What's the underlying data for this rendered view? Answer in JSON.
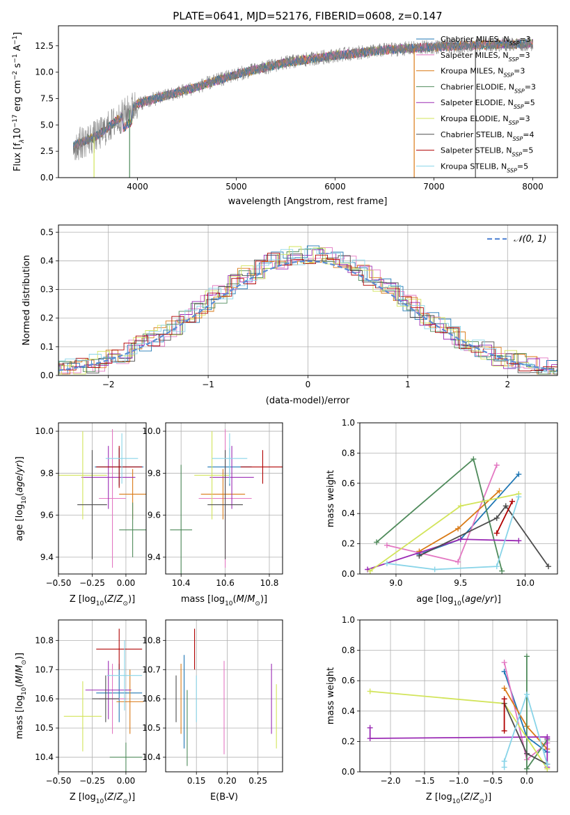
{
  "chart_data": [
    {
      "id": "spectrum",
      "type": "line",
      "title": "PLATE=0641, MJD=52176, FIBERID=0608, z=0.147",
      "xlabel": "wavelength [Angstrom, rest frame]",
      "ylabel": "Flux [f_λ 10^-17 erg cm^-2 s^-1 A^-1]",
      "xlim": [
        3200,
        8250
      ],
      "ylim": [
        0,
        14.4
      ],
      "xticks": [
        4000,
        5000,
        6000,
        7000,
        8000
      ],
      "yticks": [
        0.0,
        2.5,
        5.0,
        7.5,
        10.0,
        12.5
      ],
      "xtick_labels": [
        "4000",
        "5000",
        "6000",
        "7000",
        "8000"
      ],
      "ytick_labels": [
        "0.0",
        "2.5",
        "5.0",
        "7.5",
        "10.0",
        "12.5"
      ],
      "data_range": [
        3350,
        8000
      ],
      "continuum": {
        "x": [
          3350,
          3600,
          3800,
          4000,
          4300,
          4600,
          5000,
          5500,
          6000,
          6500,
          7000,
          7500,
          8000
        ],
        "y": [
          3.0,
          4.0,
          5.5,
          7.0,
          7.8,
          8.6,
          9.8,
          10.9,
          11.6,
          12.1,
          12.4,
          12.6,
          12.7
        ]
      },
      "grid": false,
      "legend_position": "top-right",
      "legend": [
        {
          "label": "Chabrier MILES, N",
          "sub": "SSP",
          "suffix": "=3",
          "color": "#1f77b4"
        },
        {
          "label": "Salpeter MILES, N",
          "sub": "SSP",
          "suffix": "=3",
          "color": "#e377c2"
        },
        {
          "label": "Kroupa MILES, N",
          "sub": "SSP",
          "suffix": "=3",
          "color": "#d97a16"
        },
        {
          "label": "Chabrier ELODIE, N",
          "sub": "SSP",
          "suffix": "=3",
          "color": "#4e8a5a"
        },
        {
          "label": "Salpeter ELODIE, N",
          "sub": "SSP",
          "suffix": "=5",
          "color": "#9a2ab4"
        },
        {
          "label": "Kroupa ELODIE, N",
          "sub": "SSP",
          "suffix": "=3",
          "color": "#d2e45a"
        },
        {
          "label": "Chabrier STELIB, N",
          "sub": "SSP",
          "suffix": "=4",
          "color": "#4d4d4d"
        },
        {
          "label": "Salpeter STELIB, N",
          "sub": "SSP",
          "suffix": "=5",
          "color": "#b00000"
        },
        {
          "label": "Kroupa STELIB, N",
          "sub": "SSP",
          "suffix": "=5",
          "color": "#88d4e8"
        }
      ]
    },
    {
      "id": "residuals",
      "type": "step",
      "xlabel": "(data-model)/error",
      "ylabel": "Normed distribution",
      "xlim": [
        -2.5,
        2.5
      ],
      "ylim": [
        0,
        0.525
      ],
      "xticks": [
        -2,
        -1,
        0,
        1,
        2
      ],
      "yticks": [
        0.0,
        0.1,
        0.2,
        0.3,
        0.4,
        0.5
      ],
      "xtick_labels": [
        "−2",
        "−1",
        "0",
        "1",
        "2"
      ],
      "ytick_labels": [
        "0.0",
        "0.1",
        "0.2",
        "0.3",
        "0.4",
        "0.5"
      ],
      "grid": true,
      "legend_position": "top-right",
      "legend": [
        {
          "label": "𝒩(0, 1)",
          "color": "#5b8bd6"
        }
      ],
      "gaussian": {
        "mu": 0,
        "sigma": 1
      }
    },
    {
      "id": "age_vs_Z",
      "type": "errorbar",
      "xlabel": "Z [log10(Z/Z⊙)]",
      "ylabel": "age  [log10(age/yr)]",
      "xlim": [
        -0.5,
        0.15
      ],
      "ylim": [
        9.32,
        10.04
      ],
      "xticks": [
        -0.5,
        -0.25,
        0.0
      ],
      "yticks": [
        9.4,
        9.6,
        9.8,
        10.0
      ],
      "xtick_labels": [
        "−0.50",
        "−0.25",
        "0.00"
      ],
      "ytick_labels": [
        "9.4",
        "9.6",
        "9.8",
        "10.0"
      ],
      "points": [
        {
          "x": -0.05,
          "xerr": 0.18,
          "y": 9.83,
          "yerr": 0.09,
          "color": "#1f77b4"
        },
        {
          "x": -0.1,
          "xerr": 0.1,
          "y": 9.68,
          "yerr": 0.33,
          "color": "#e377c2"
        },
        {
          "x": 0.05,
          "xerr": 0.1,
          "y": 9.7,
          "yerr": 0.12,
          "color": "#d97a16"
        },
        {
          "x": 0.05,
          "xerr": 0.1,
          "y": 9.53,
          "yerr": 0.13,
          "color": "#4e8a5a"
        },
        {
          "x": -0.13,
          "xerr": 0.2,
          "y": 9.78,
          "yerr": 0.15,
          "color": "#9a2ab4"
        },
        {
          "x": -0.32,
          "xerr": 0.18,
          "y": 9.79,
          "yerr": 0.21,
          "color": "#d2e45a"
        },
        {
          "x": -0.25,
          "xerr": 0.11,
          "y": 9.65,
          "yerr": 0.26,
          "color": "#4d4d4d"
        },
        {
          "x": -0.05,
          "xerr": 0.17,
          "y": 9.83,
          "yerr": 0.1,
          "color": "#b00000"
        },
        {
          "x": -0.03,
          "xerr": 0.12,
          "y": 9.87,
          "yerr": 0.12,
          "color": "#88d4e8"
        }
      ]
    },
    {
      "id": "age_vs_mass",
      "type": "errorbar",
      "xlabel": "mass [log10(M/M⊙)]",
      "ylabel": "",
      "xlim": [
        10.33,
        10.86
      ],
      "ylim": [
        9.32,
        10.04
      ],
      "xticks": [
        10.4,
        10.6,
        10.8
      ],
      "yticks": [
        9.4,
        9.6,
        9.8,
        10.0
      ],
      "xtick_labels": [
        "10.4",
        "10.6",
        "10.8"
      ],
      "ytick_labels": [
        "9.4",
        "9.6",
        "9.8",
        "10.0"
      ],
      "points": [
        {
          "x": 10.62,
          "xerr": 0.1,
          "y": 9.83,
          "yerr": 0.09,
          "color": "#1f77b4"
        },
        {
          "x": 10.6,
          "xerr": 0.12,
          "y": 9.68,
          "yerr": 0.33,
          "color": "#e377c2"
        },
        {
          "x": 10.59,
          "xerr": 0.1,
          "y": 9.7,
          "yerr": 0.12,
          "color": "#d97a16"
        },
        {
          "x": 10.4,
          "xerr": 0.05,
          "y": 9.53,
          "yerr": 0.31,
          "color": "#4e8a5a"
        },
        {
          "x": 10.63,
          "xerr": 0.1,
          "y": 9.78,
          "yerr": 0.15,
          "color": "#9a2ab4"
        },
        {
          "x": 10.54,
          "xerr": 0.08,
          "y": 9.79,
          "yerr": 0.21,
          "color": "#d2e45a"
        },
        {
          "x": 10.6,
          "xerr": 0.08,
          "y": 9.65,
          "yerr": 0.26,
          "color": "#4d4d4d"
        },
        {
          "x": 10.77,
          "xerr": 0.1,
          "y": 9.83,
          "yerr": 0.08,
          "color": "#b00000"
        },
        {
          "x": 10.62,
          "xerr": 0.08,
          "y": 9.87,
          "yerr": 0.12,
          "color": "#88d4e8"
        }
      ]
    },
    {
      "id": "weight_vs_age",
      "type": "line",
      "xlabel": "age  [log10(age/yr)]",
      "ylabel": "mass weight",
      "xlim": [
        8.72,
        10.25
      ],
      "ylim": [
        0,
        1.0
      ],
      "xticks": [
        9.0,
        9.5,
        10.0
      ],
      "yticks": [
        0.0,
        0.2,
        0.4,
        0.6,
        0.8,
        1.0
      ],
      "xtick_labels": [
        "9.0",
        "9.5",
        "10.0"
      ],
      "ytick_labels": [
        "0.0",
        "0.2",
        "0.4",
        "0.6",
        "0.8",
        "1.0"
      ],
      "grid": true,
      "series": [
        {
          "color": "#1f77b4",
          "x": [
            9.18,
            9.5,
            9.95
          ],
          "y": [
            0.13,
            0.23,
            0.66
          ]
        },
        {
          "color": "#e377c2",
          "x": [
            8.93,
            9.48,
            9.78
          ],
          "y": [
            0.19,
            0.08,
            0.72
          ]
        },
        {
          "color": "#d97a16",
          "x": [
            9.18,
            9.48,
            9.8
          ],
          "y": [
            0.15,
            0.3,
            0.55
          ]
        },
        {
          "color": "#4e8a5a",
          "x": [
            8.85,
            9.6,
            9.82
          ],
          "y": [
            0.21,
            0.76,
            0.02
          ]
        },
        {
          "color": "#9a2ab4",
          "x": [
            8.78,
            9.5,
            9.95
          ],
          "y": [
            0.03,
            0.23,
            0.22
          ]
        },
        {
          "color": "#d2e45a",
          "x": [
            8.8,
            9.5,
            9.95
          ],
          "y": [
            0.02,
            0.45,
            0.53
          ]
        },
        {
          "color": "#4d4d4d",
          "x": [
            9.18,
            9.78,
            9.85,
            10.18
          ],
          "y": [
            0.12,
            0.37,
            0.45,
            0.05
          ]
        },
        {
          "color": "#b00000",
          "x": [
            9.78,
            9.9
          ],
          "y": [
            0.27,
            0.48
          ]
        },
        {
          "color": "#88d4e8",
          "x": [
            8.93,
            9.3,
            9.78,
            9.95
          ],
          "y": [
            0.07,
            0.03,
            0.05,
            0.51
          ]
        }
      ]
    },
    {
      "id": "mass_vs_Z",
      "type": "errorbar",
      "xlabel": "Z [log10(Z/Z⊙)]",
      "ylabel": "mass [log10(M/M⊙)]",
      "xlim": [
        -0.5,
        0.15
      ],
      "ylim": [
        10.35,
        10.87
      ],
      "xticks": [
        -0.5,
        -0.25,
        0.0
      ],
      "yticks": [
        10.4,
        10.5,
        10.6,
        10.7,
        10.8
      ],
      "xtick_labels": [
        "−0.50",
        "−0.25",
        "0.00"
      ],
      "ytick_labels": [
        "10.4",
        "10.5",
        "10.6",
        "10.7",
        "10.8"
      ],
      "points": [
        {
          "x": -0.05,
          "xerr": 0.17,
          "y": 10.62,
          "yerr": 0.1,
          "color": "#1f77b4"
        },
        {
          "x": -0.1,
          "xerr": 0.1,
          "y": 10.6,
          "yerr": 0.12,
          "color": "#e377c2"
        },
        {
          "x": 0.03,
          "xerr": 0.1,
          "y": 10.59,
          "yerr": 0.11,
          "color": "#d97a16"
        },
        {
          "x": 0.0,
          "xerr": 0.12,
          "y": 10.4,
          "yerr": 0.05,
          "color": "#4e8a5a"
        },
        {
          "x": -0.13,
          "xerr": 0.17,
          "y": 10.63,
          "yerr": 0.1,
          "color": "#9a2ab4"
        },
        {
          "x": -0.32,
          "xerr": 0.14,
          "y": 10.54,
          "yerr": 0.12,
          "color": "#d2e45a"
        },
        {
          "x": -0.15,
          "xerr": 0.1,
          "y": 10.6,
          "yerr": 0.08,
          "color": "#4d4d4d"
        },
        {
          "x": -0.05,
          "xerr": 0.17,
          "y": 10.77,
          "yerr": 0.07,
          "color": "#b00000"
        },
        {
          "x": -0.01,
          "xerr": 0.13,
          "y": 10.68,
          "yerr": 0.12,
          "color": "#88d4e8"
        }
      ]
    },
    {
      "id": "mass_vs_ebv",
      "type": "errorbar",
      "xlabel": "E(B-V)",
      "ylabel": "",
      "xlim": [
        0.1,
        0.29
      ],
      "ylim": [
        10.35,
        10.87
      ],
      "xticks": [
        0.15,
        0.2,
        0.25
      ],
      "yticks": [
        10.4,
        10.5,
        10.6,
        10.7,
        10.8
      ],
      "xtick_labels": [
        "0.15",
        "0.20",
        "0.25"
      ],
      "ytick_labels": [
        "10.4",
        "10.5",
        "10.6",
        "10.7",
        "10.8"
      ],
      "points": [
        {
          "x": 0.13,
          "xerr": 0,
          "y": 10.59,
          "yerr": 0.16,
          "color": "#1f77b4"
        },
        {
          "x": 0.195,
          "xerr": 0,
          "y": 10.57,
          "yerr": 0.16,
          "color": "#e377c2"
        },
        {
          "x": 0.125,
          "xerr": 0,
          "y": 10.6,
          "yerr": 0.12,
          "color": "#d97a16"
        },
        {
          "x": 0.135,
          "xerr": 0,
          "y": 10.5,
          "yerr": 0.13,
          "color": "#4e8a5a"
        },
        {
          "x": 0.272,
          "xerr": 0,
          "y": 10.6,
          "yerr": 0.12,
          "color": "#9a2ab4"
        },
        {
          "x": 0.28,
          "xerr": 0,
          "y": 10.54,
          "yerr": 0.11,
          "color": "#d2e45a"
        },
        {
          "x": 0.117,
          "xerr": 0,
          "y": 10.6,
          "yerr": 0.08,
          "color": "#4d4d4d"
        },
        {
          "x": 0.147,
          "xerr": 0,
          "y": 10.77,
          "yerr": 0.07,
          "color": "#b00000"
        },
        {
          "x": 0.15,
          "xerr": 0,
          "y": 10.6,
          "yerr": 0.08,
          "color": "#88d4e8"
        }
      ]
    },
    {
      "id": "weight_vs_Z",
      "type": "line",
      "xlabel": "Z [log10(Z/Z⊙)]",
      "ylabel": "mass weight",
      "xlim": [
        -2.45,
        0.45
      ],
      "ylim": [
        0,
        1.0
      ],
      "xticks": [
        -2.0,
        -1.5,
        -1.0,
        -0.5,
        0.0
      ],
      "yticks": [
        0.0,
        0.2,
        0.4,
        0.6,
        0.8,
        1.0
      ],
      "xtick_labels": [
        "−2.0",
        "−1.5",
        "−1.0",
        "−0.5",
        "0.0"
      ],
      "ytick_labels": [
        "0.0",
        "0.2",
        "0.4",
        "0.6",
        "0.8",
        "1.0"
      ],
      "grid": true,
      "series": [
        {
          "color": "#1f77b4",
          "x": [
            -0.33,
            0.0,
            0.3
          ],
          "y": [
            0.66,
            0.23,
            0.13
          ]
        },
        {
          "color": "#e377c2",
          "x": [
            -0.33,
            0.0,
            0.3
          ],
          "y": [
            0.72,
            0.08,
            0.19
          ]
        },
        {
          "color": "#d97a16",
          "x": [
            -0.33,
            0.0,
            0.3
          ],
          "y": [
            0.55,
            0.3,
            0.15
          ]
        },
        {
          "color": "#4e8a5a",
          "x": [
            0.0,
            0.0,
            0.3
          ],
          "y": [
            0.76,
            0.02,
            0.21
          ]
        },
        {
          "color": "#9a2ab4",
          "x": [
            -2.3,
            -2.3,
            0.3,
            0.3,
            0.3
          ],
          "y": [
            0.29,
            0.22,
            0.23,
            0.22,
            0.03
          ]
        },
        {
          "color": "#d2e45a",
          "x": [
            -2.3,
            -0.33,
            0.3
          ],
          "y": [
            0.53,
            0.45,
            0.02
          ]
        },
        {
          "color": "#4d4d4d",
          "x": [
            -0.33,
            0.0,
            0.3
          ],
          "y": [
            0.45,
            0.12,
            0.05
          ]
        },
        {
          "color": "#b00000",
          "x": [
            -0.33,
            -0.33
          ],
          "y": [
            0.27,
            0.48
          ]
        },
        {
          "color": "#88d4e8",
          "x": [
            -0.33,
            -0.33,
            0.0,
            0.3
          ],
          "y": [
            0.03,
            0.07,
            0.51,
            0.05
          ]
        }
      ]
    }
  ]
}
